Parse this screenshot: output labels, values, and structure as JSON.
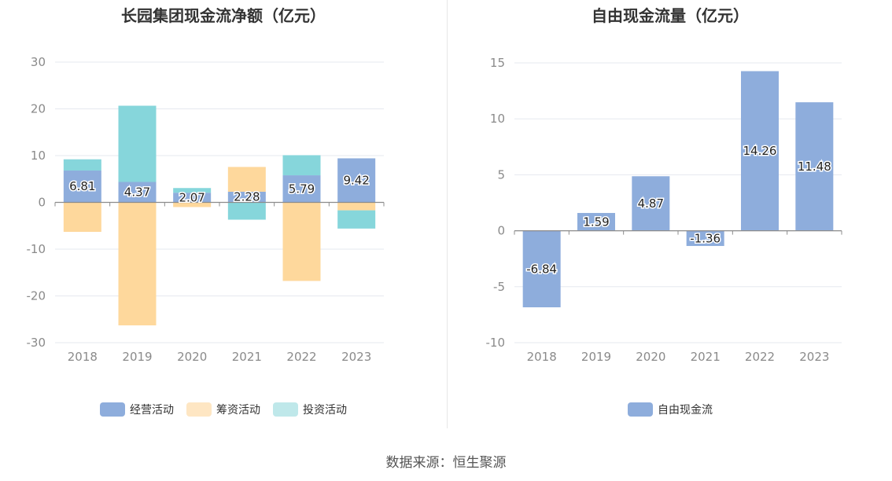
{
  "chart_data": [
    {
      "type": "bar",
      "stacked": true,
      "title": "长园集团现金流净额（亿元）",
      "categories": [
        "2018",
        "2019",
        "2020",
        "2021",
        "2022",
        "2023"
      ],
      "ylim": [
        -30,
        30
      ],
      "yticks": [
        30,
        20,
        10,
        0,
        -10,
        -20,
        -30
      ],
      "series": [
        {
          "name": "经营活动",
          "color": "#8eaddc",
          "values": [
            6.81,
            4.37,
            2.07,
            2.28,
            5.79,
            9.42
          ],
          "labels": [
            "6.81",
            "4.37",
            "2.07",
            "2.28",
            "5.79",
            "9.42"
          ]
        },
        {
          "name": "筹资活动",
          "color": "#fed89c",
          "values": [
            -6.3,
            -26.3,
            -1.0,
            5.3,
            -16.8,
            -1.7
          ]
        },
        {
          "name": "投资活动",
          "color": "#86d6db",
          "values": [
            2.4,
            16.3,
            1.0,
            -3.7,
            4.3,
            -3.9
          ]
        }
      ]
    },
    {
      "type": "bar",
      "title": "自由现金流量（亿元）",
      "categories": [
        "2018",
        "2019",
        "2020",
        "2021",
        "2022",
        "2023"
      ],
      "ylim": [
        -10,
        15
      ],
      "yticks": [
        15,
        10,
        5,
        0,
        -5,
        -10
      ],
      "series": [
        {
          "name": "自由现金流",
          "color": "#8eaddc",
          "values": [
            -6.84,
            1.59,
            4.87,
            -1.36,
            14.26,
            11.48
          ],
          "labels": [
            "-6.84",
            "1.59",
            "4.87",
            "-1.36",
            "14.26",
            "11.48"
          ]
        }
      ]
    }
  ],
  "legend_left": [
    {
      "label": "经营活动",
      "color": "#8eaddc"
    },
    {
      "label": "筹资活动",
      "color": "#fee6c3"
    },
    {
      "label": "投资活动",
      "color": "#bfe8ea"
    }
  ],
  "legend_right": [
    {
      "label": "自由现金流",
      "color": "#8eaddc"
    }
  ],
  "source": "数据来源：恒生聚源"
}
